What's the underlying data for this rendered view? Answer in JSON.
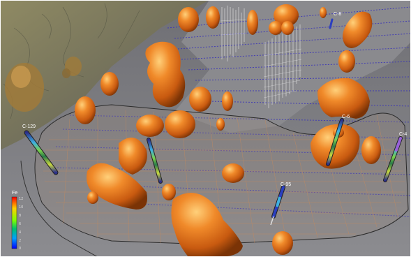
{
  "drillholes": [
    {
      "label": "C-129",
      "color": "#2a2f6e"
    },
    {
      "label": "C-6",
      "color": "#3a3f9a"
    },
    {
      "label": "C-8",
      "color": "#3a3f9a"
    },
    {
      "label": "C-4",
      "color": "#6a40b0"
    },
    {
      "label": "C-95",
      "color": "#2b3fc0"
    }
  ],
  "legend": {
    "title": "Fe",
    "ticks": [
      "12",
      "10",
      "8",
      "6",
      "4",
      "2",
      "0"
    ],
    "colors": [
      "#ff0000",
      "#ffd000",
      "#80ff00",
      "#00c070",
      "#00a0ff",
      "#0000ff"
    ]
  },
  "colors": {
    "ore_body": "#e8731c",
    "terrain": "#7f7f7f",
    "topography": "#8e8a6a",
    "grid": "#c78a5c",
    "contour": "#3c36b6"
  }
}
